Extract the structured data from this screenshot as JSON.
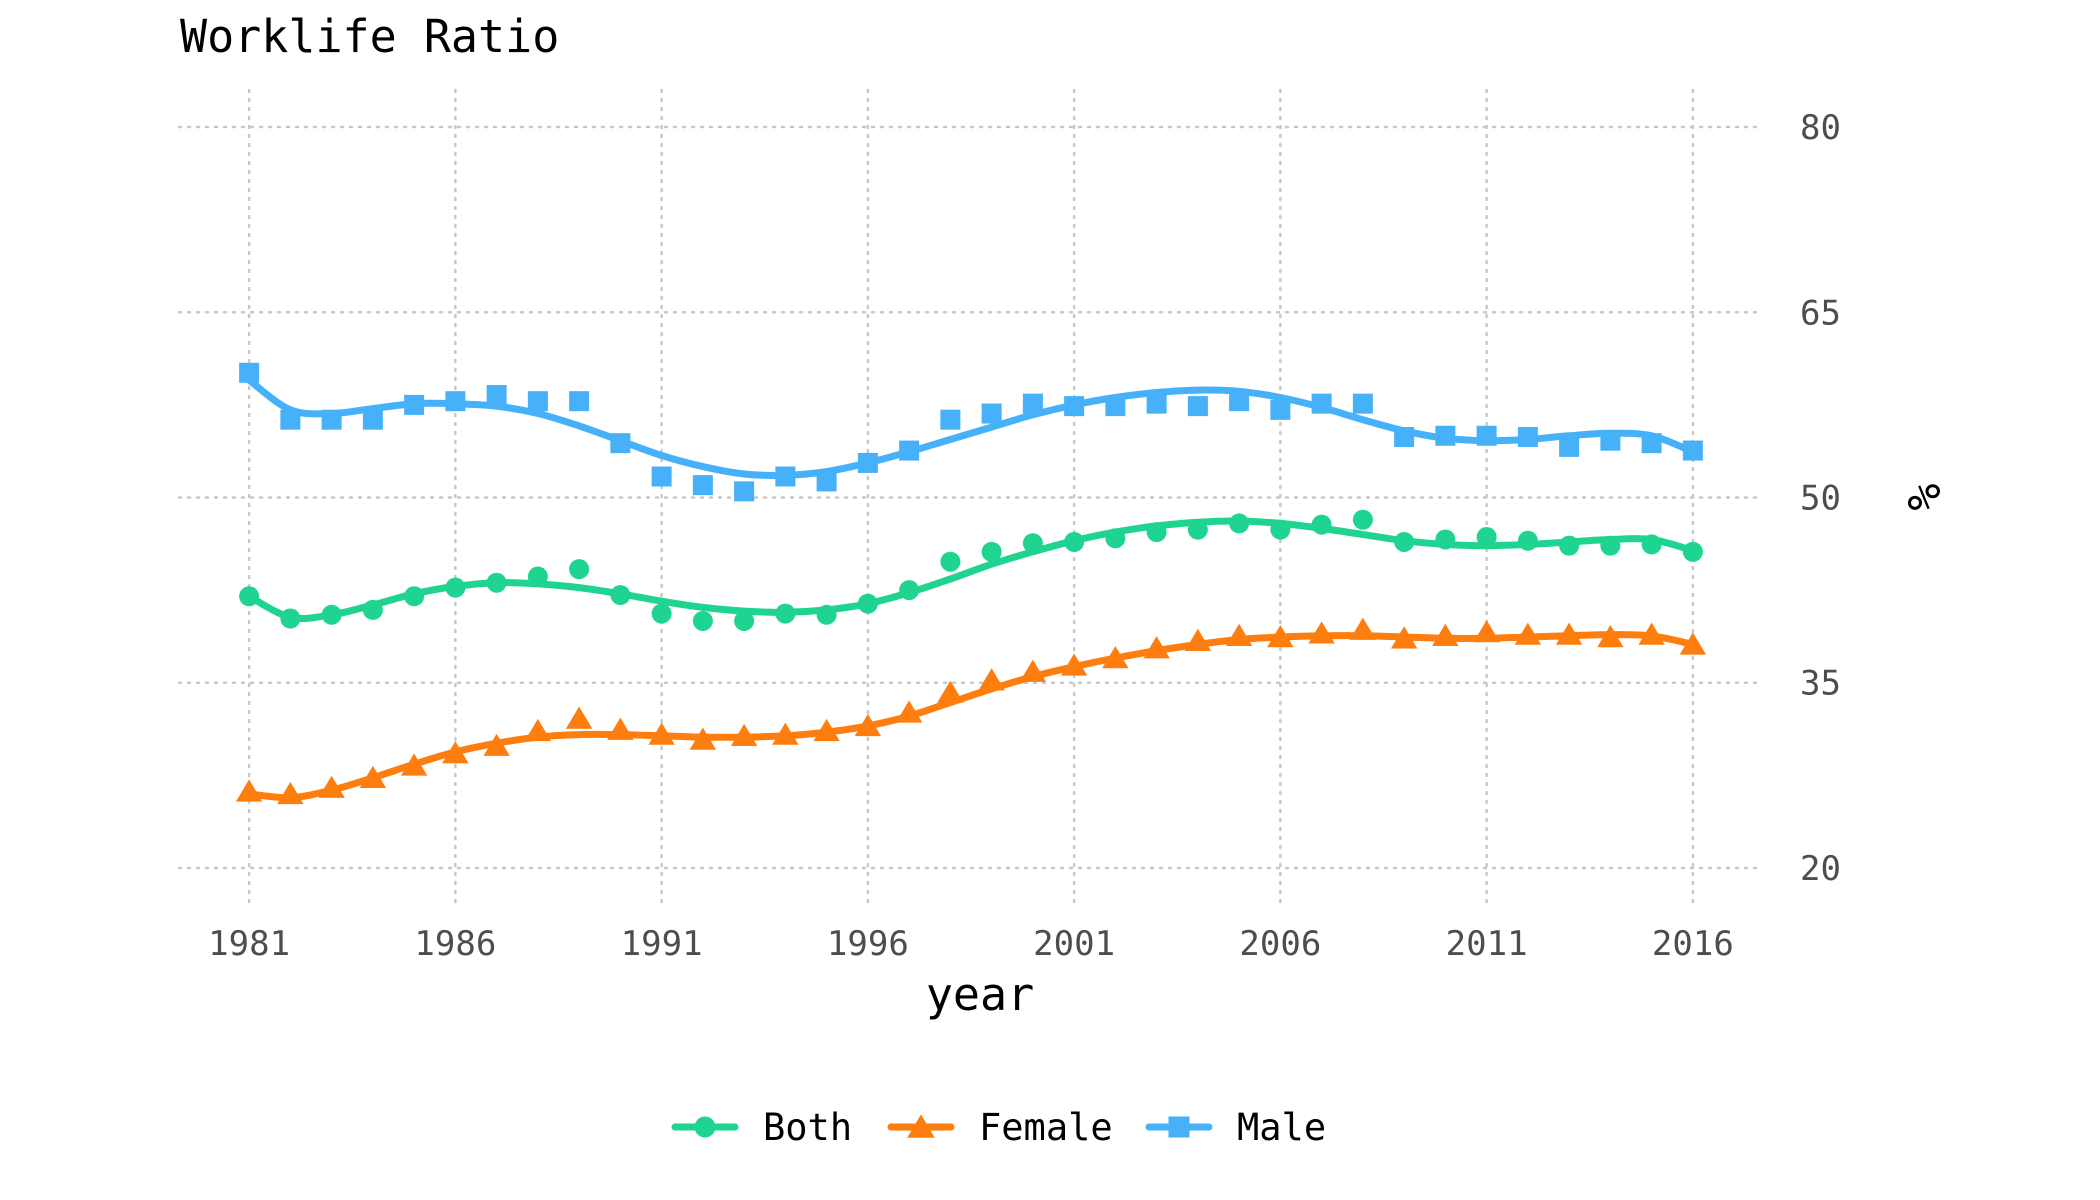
{
  "chart_data": {
    "type": "line",
    "title": "Worklife Ratio",
    "xlabel": "year",
    "ylabel": "%",
    "xlim": [
      1979.3,
      2017.7
    ],
    "ylim": [
      17,
      83
    ],
    "x_ticks": [
      1981,
      1986,
      1991,
      1996,
      2001,
      2006,
      2011,
      2016
    ],
    "y_ticks": [
      20,
      35,
      50,
      65,
      80
    ],
    "y_axis_position": "right",
    "grid": "dotted",
    "legend_position": "bottom",
    "x": [
      1981,
      1982,
      1983,
      1984,
      1985,
      1986,
      1987,
      1988,
      1989,
      1990,
      1991,
      1992,
      1993,
      1994,
      1995,
      1996,
      1997,
      1998,
      1999,
      2000,
      2001,
      2002,
      2003,
      2004,
      2005,
      2006,
      2007,
      2008,
      2009,
      2010,
      2011,
      2012,
      2013,
      2014,
      2015,
      2016
    ],
    "series": [
      {
        "name": "Both",
        "color": "#1fd491",
        "marker": "circle",
        "values": [
          42.0,
          40.2,
          40.5,
          40.9,
          42.0,
          42.7,
          43.1,
          43.6,
          44.2,
          42.1,
          40.6,
          40.0,
          40.0,
          40.6,
          40.5,
          41.4,
          42.5,
          44.8,
          45.6,
          46.3,
          46.4,
          46.7,
          47.2,
          47.4,
          47.9,
          47.4,
          47.8,
          48.2,
          46.4,
          46.6,
          46.8,
          46.5,
          46.1,
          46.1,
          46.2,
          45.6
        ],
        "smooth": [
          42.0,
          40.3,
          40.5,
          41.3,
          42.2,
          42.8,
          43.1,
          43.0,
          42.7,
          42.2,
          41.6,
          41.1,
          40.8,
          40.7,
          40.9,
          41.4,
          42.3,
          43.4,
          44.6,
          45.6,
          46.5,
          47.2,
          47.7,
          48.0,
          48.1,
          47.9,
          47.5,
          47.0,
          46.5,
          46.2,
          46.1,
          46.2,
          46.4,
          46.6,
          46.6,
          45.7
        ]
      },
      {
        "name": "Female",
        "color": "#fd7e0e",
        "marker": "triangle",
        "values": [
          26.2,
          26.0,
          26.5,
          27.3,
          28.3,
          29.3,
          29.9,
          31.1,
          32.1,
          31.2,
          30.8,
          30.4,
          30.7,
          30.8,
          31.1,
          31.5,
          32.6,
          34.2,
          35.2,
          35.9,
          36.4,
          37.0,
          37.8,
          38.4,
          38.8,
          38.7,
          39.0,
          39.3,
          38.6,
          38.8,
          39.1,
          38.9,
          38.9,
          38.7,
          38.9,
          38.1
        ],
        "smooth": [
          26.0,
          25.7,
          26.3,
          27.3,
          28.4,
          29.4,
          30.1,
          30.6,
          30.8,
          30.8,
          30.7,
          30.6,
          30.6,
          30.7,
          31.0,
          31.5,
          32.3,
          33.4,
          34.5,
          35.5,
          36.3,
          37.0,
          37.6,
          38.1,
          38.5,
          38.7,
          38.8,
          38.8,
          38.7,
          38.6,
          38.6,
          38.7,
          38.8,
          38.9,
          38.8,
          38.1
        ]
      },
      {
        "name": "Male",
        "color": "#46b1f9",
        "marker": "square",
        "values": [
          60.1,
          56.3,
          56.3,
          56.3,
          57.5,
          57.8,
          58.3,
          57.8,
          57.8,
          54.4,
          51.7,
          51.0,
          50.5,
          51.7,
          51.3,
          52.8,
          53.8,
          56.3,
          56.8,
          57.6,
          57.4,
          57.4,
          57.6,
          57.4,
          57.8,
          57.1,
          57.6,
          57.6,
          54.9,
          55.0,
          55.0,
          54.9,
          54.1,
          54.6,
          54.4,
          53.8
        ],
        "smooth": [
          59.5,
          57.1,
          56.8,
          57.2,
          57.6,
          57.6,
          57.4,
          56.8,
          55.8,
          54.6,
          53.4,
          52.5,
          51.9,
          51.8,
          52.1,
          52.8,
          53.7,
          54.7,
          55.7,
          56.7,
          57.5,
          58.1,
          58.5,
          58.7,
          58.6,
          58.1,
          57.3,
          56.3,
          55.4,
          54.8,
          54.6,
          54.7,
          55.0,
          55.2,
          55.0,
          53.7
        ]
      }
    ]
  }
}
